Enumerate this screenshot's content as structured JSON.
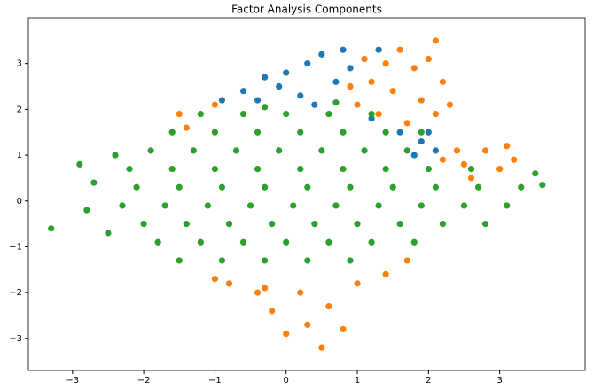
{
  "chart_data": {
    "type": "scatter",
    "title": "Factor Analysis Components",
    "xlim": [
      -3.62,
      4.2
    ],
    "ylim": [
      -3.7,
      4.0
    ],
    "xticks": [
      {
        "value": -3,
        "label": "−3"
      },
      {
        "value": -2,
        "label": "−2"
      },
      {
        "value": -1,
        "label": "−1"
      },
      0,
      1,
      2,
      3
    ],
    "yticks": [
      {
        "value": -3,
        "label": "−3"
      },
      {
        "value": -2,
        "label": "−2"
      },
      {
        "value": -1,
        "label": "−1"
      },
      0,
      1,
      2,
      3
    ],
    "grid": false,
    "series": [
      {
        "color": "#1f77b4",
        "x": [
          -0.6,
          -0.3,
          0,
          0.3,
          0.5,
          0.8,
          0.7,
          0.2,
          -0.1,
          0.9,
          -0.9,
          1.3,
          1.6,
          1.9,
          2.1,
          1.8,
          0.4,
          -0.4,
          1.2,
          2.0
        ],
        "values": [
          2.4,
          2.7,
          2.8,
          3.0,
          3.2,
          3.3,
          2.6,
          2.3,
          2.5,
          2.9,
          2.2,
          3.3,
          1.5,
          1.3,
          1.1,
          1.0,
          2.1,
          2.2,
          1.8,
          1.5
        ]
      },
      {
        "color": "#ff7f0e",
        "x": [
          1.0,
          1.2,
          1.4,
          1.6,
          1.8,
          2.0,
          2.1,
          1.5,
          1.9,
          2.2,
          1.3,
          1.7,
          2.1,
          0.9,
          1.1,
          2.3,
          2.2,
          2.5,
          2.8,
          3.1,
          2.6,
          3.0,
          2.4,
          3.2,
          -1.5,
          -1.0,
          -1.4,
          -0.8,
          -0.3,
          0.2,
          0.6,
          0.3,
          0.5,
          -0.2,
          1.0,
          1.4,
          0.8,
          -1.0,
          0.0,
          1.7,
          -0.4
        ],
        "values": [
          2.1,
          2.6,
          3.0,
          3.3,
          2.9,
          3.1,
          3.5,
          2.4,
          2.2,
          2.6,
          1.9,
          1.7,
          1.9,
          2.5,
          3.1,
          2.1,
          0.9,
          0.8,
          1.1,
          1.2,
          0.5,
          0.7,
          1.1,
          0.9,
          1.9,
          2.1,
          1.6,
          -1.8,
          -1.9,
          -2.0,
          -2.3,
          -2.7,
          -3.2,
          -2.4,
          -1.8,
          -1.6,
          -2.8,
          -1.7,
          -2.9,
          -1.3,
          -2.0
        ]
      },
      {
        "color": "#2ca02c",
        "x": [
          -1.2,
          -0.6,
          0,
          0.6,
          1.2,
          -1.6,
          -1.0,
          -0.4,
          0.2,
          0.8,
          1.4,
          1.9,
          -1.9,
          -1.3,
          -0.7,
          -0.1,
          0.5,
          1.1,
          1.7,
          -2.2,
          -1.6,
          -1.0,
          -0.4,
          0.2,
          0.8,
          1.4,
          2.0,
          2.6,
          -2.1,
          -1.5,
          -0.9,
          -0.3,
          0.3,
          0.9,
          1.5,
          2.1,
          2.7,
          3.3,
          -2.3,
          -1.7,
          -1.1,
          -0.5,
          0.1,
          0.7,
          1.3,
          1.9,
          2.5,
          3.1,
          -2.0,
          -1.4,
          -0.8,
          -0.2,
          0.4,
          1.0,
          1.6,
          2.2,
          2.8,
          -1.8,
          -1.2,
          -0.6,
          0,
          0.6,
          1.2,
          1.8,
          -1.5,
          -0.9,
          -0.3,
          0.3,
          0.9,
          -3.3,
          -2.9,
          -2.7,
          -2.5,
          -2.8,
          3.6,
          3.5,
          -2.4,
          0.7,
          -0.3
        ],
        "values": [
          1.9,
          1.9,
          1.9,
          1.9,
          1.9,
          1.5,
          1.5,
          1.5,
          1.5,
          1.5,
          1.5,
          1.5,
          1.1,
          1.1,
          1.1,
          1.1,
          1.1,
          1.1,
          1.1,
          0.7,
          0.7,
          0.7,
          0.7,
          0.7,
          0.7,
          0.7,
          0.7,
          0.7,
          0.3,
          0.3,
          0.3,
          0.3,
          0.3,
          0.3,
          0.3,
          0.3,
          0.3,
          0.3,
          -0.1,
          -0.1,
          -0.1,
          -0.1,
          -0.1,
          -0.1,
          -0.1,
          -0.1,
          -0.1,
          -0.1,
          -0.5,
          -0.5,
          -0.5,
          -0.5,
          -0.5,
          -0.5,
          -0.5,
          -0.5,
          -0.5,
          -0.9,
          -0.9,
          -0.9,
          -0.9,
          -0.9,
          -0.9,
          -0.9,
          -1.3,
          -1.3,
          -1.3,
          -1.3,
          -1.3,
          -0.6,
          0.8,
          0.4,
          -0.7,
          -0.2,
          0.35,
          0.6,
          1.0,
          2.15,
          2.05
        ]
      }
    ]
  }
}
